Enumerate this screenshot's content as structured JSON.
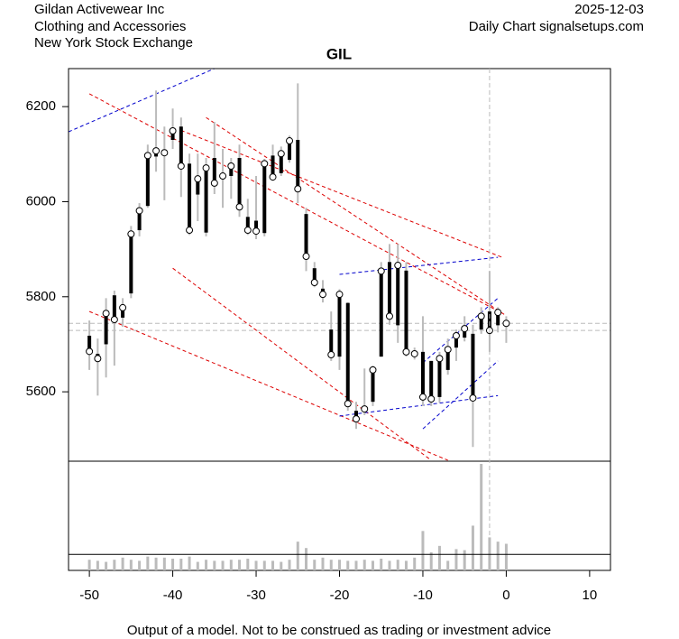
{
  "header": {
    "company": "Gildan Activewear Inc",
    "sector": "Clothing and Accessories",
    "exchange": "New York Stock Exchange",
    "date": "2025-12-03",
    "source": "Daily Chart signalsetups.com"
  },
  "footer": "Output of a model. Not to be construed as trading or investment advice",
  "chart_data": {
    "type": "candlestick",
    "title": "GIL",
    "x": [
      -50,
      -49,
      -48,
      -47,
      -46,
      -45,
      -44,
      -43,
      -42,
      -41,
      -40,
      -39,
      -38,
      -37,
      -36,
      -35,
      -34,
      -33,
      -32,
      -31,
      -30,
      -29,
      -28,
      -27,
      -26,
      -25,
      -24,
      -23,
      -22,
      -21,
      -20,
      -19,
      -18,
      -17,
      -16,
      -15,
      -14,
      -13,
      -12,
      -11,
      -10,
      -9,
      -8,
      -7,
      -6,
      -5,
      -4,
      -3,
      -2,
      -1,
      0
    ],
    "open": [
      5718,
      5680,
      5700,
      5803,
      5756,
      5807,
      5940,
      5991,
      6095,
      6110,
      6130,
      6158,
      6080,
      6015,
      5935,
      6092,
      6060,
      6054,
      6092,
      5968,
      5960,
      5934,
      6097,
      6060,
      6088,
      6130,
      5974,
      5860,
      5817,
      5731,
      5674,
      5787,
      5560,
      5570,
      5579,
      5674,
      5873,
      5740,
      5855,
      5674,
      5684,
      5665,
      5589,
      5646,
      5693,
      5714,
      5722,
      5731,
      5769,
      5740,
      5748
    ],
    "high": [
      5750,
      5712,
      5797,
      5813,
      5797,
      5949,
      5997,
      6120,
      6234,
      6158,
      6196,
      6177,
      6101,
      6101,
      6092,
      6168,
      6111,
      6092,
      6120,
      6006,
      6054,
      6090,
      6120,
      6116,
      6139,
      6249,
      5987,
      5873,
      5835,
      5769,
      5816,
      5788,
      5579,
      5649,
      5655,
      5873,
      5911,
      5911,
      5873,
      5693,
      5759,
      5665,
      5684,
      5712,
      5731,
      5759,
      5741,
      5778,
      5854,
      5778,
      5759
    ],
    "low": [
      5646,
      5592,
      5630,
      5655,
      5737,
      5797,
      5927,
      5987,
      6063,
      6003,
      6111,
      6010,
      5930,
      5959,
      5927,
      6016,
      5987,
      6006,
      5968,
      5930,
      5921,
      5927,
      6044,
      6054,
      6082,
      5997,
      5854,
      5820,
      5788,
      5665,
      5646,
      5560,
      5522,
      5551,
      5570,
      5674,
      5741,
      5703,
      5674,
      5668,
      5570,
      5570,
      5577,
      5636,
      5665,
      5706,
      5484,
      5722,
      5684,
      5725,
      5703
    ],
    "close": [
      5685,
      5670,
      5765,
      5752,
      5777,
      5932,
      5981,
      6097,
      6107,
      6103,
      6149,
      6075,
      5940,
      6048,
      6071,
      6039,
      6054,
      6075,
      5989,
      5940,
      5938,
      6080,
      6052,
      6101,
      6128,
      6027,
      5885,
      5830,
      5805,
      5678,
      5805,
      5575,
      5543,
      5564,
      5646,
      5854,
      5759,
      5866,
      5684,
      5680,
      5589,
      5585,
      5670,
      5689,
      5718,
      5733,
      5587,
      5759,
      5729,
      5767,
      5744
    ],
    "volume": [
      10,
      9,
      8,
      10,
      12,
      10,
      9,
      13,
      12,
      12,
      11,
      11,
      13,
      8,
      10,
      9,
      9,
      10,
      10,
      11,
      9,
      9,
      9,
      8,
      10,
      27,
      21,
      10,
      12,
      10,
      10,
      9,
      9,
      10,
      9,
      11,
      9,
      10,
      9,
      12,
      37,
      17,
      23,
      9,
      20,
      19,
      42,
      100,
      31,
      27,
      25
    ],
    "volume_line": 15,
    "volume_ylim": [
      0,
      102.5
    ],
    "wick_color": "#bbbbbb",
    "body_color": "#000000",
    "lines": [
      {
        "x": [
          -52.5,
          -35
        ],
        "y": [
          6147,
          6280
        ],
        "color": "#0000cc"
      },
      {
        "x": [
          -50,
          -1
        ],
        "y": [
          6227,
          5770
        ],
        "color": "#dd0000"
      },
      {
        "x": [
          -39,
          -0.5
        ],
        "y": [
          6150,
          5883
        ],
        "color": "#dd0000"
      },
      {
        "x": [
          -36,
          0
        ],
        "y": [
          6177,
          5760
        ],
        "color": "#dd0000"
      },
      {
        "x": [
          -50,
          -7
        ],
        "y": [
          5769,
          5456
        ],
        "color": "#dd0000"
      },
      {
        "x": [
          -40,
          -9
        ],
        "y": [
          5860,
          5456
        ],
        "color": "#dd0000"
      },
      {
        "x": [
          -20,
          -1
        ],
        "y": [
          5847,
          5883
        ],
        "color": "#0000cc"
      },
      {
        "x": [
          -20,
          -1
        ],
        "y": [
          5549,
          5592
        ],
        "color": "#0000cc"
      },
      {
        "x": [
          -10,
          -1
        ],
        "y": [
          5661,
          5797
        ],
        "color": "#0000cc"
      },
      {
        "x": [
          -10,
          -1
        ],
        "y": [
          5522,
          5665
        ],
        "color": "#0000cc"
      }
    ],
    "hlines": [
      5744,
      5729
    ],
    "vline": -2,
    "xlim": [
      -52.5,
      12.5
    ],
    "xticks": [
      -50,
      -40,
      -30,
      -20,
      -10,
      0,
      10
    ],
    "ylim": [
      5454,
      6280
    ],
    "yticks": [
      5600,
      5800,
      6000,
      6200
    ]
  }
}
